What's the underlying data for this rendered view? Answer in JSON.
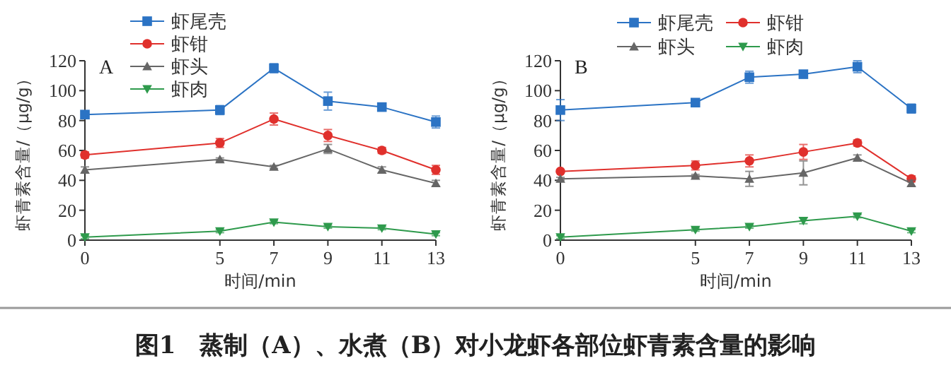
{
  "chart_data": [
    {
      "type": "line",
      "x": [
        0,
        5,
        7,
        9,
        11,
        13
      ],
      "xlim": [
        0,
        13
      ],
      "xticks": [
        0,
        5,
        7,
        9,
        11,
        13
      ],
      "ylim": [
        0,
        120
      ],
      "yticks": [
        0,
        20,
        40,
        60,
        80,
        100,
        120
      ],
      "xlabel": "时间/min",
      "ylabel": "虾青素含量/（μg/g）",
      "legend": "top",
      "grid": false,
      "annotations": [
        "A"
      ],
      "series": [
        {
          "name": "虾尾壳",
          "color": "#2b73c4",
          "marker": "square",
          "values": [
            84,
            87,
            115,
            93,
            89,
            79
          ],
          "errors": [
            2,
            3,
            3,
            6,
            2,
            4
          ]
        },
        {
          "name": "虾钳",
          "color": "#e0302c",
          "marker": "circle",
          "values": [
            57,
            65,
            81,
            70,
            60,
            47
          ],
          "errors": [
            2,
            3,
            4,
            4,
            2,
            3
          ]
        },
        {
          "name": "虾头",
          "color": "#666666",
          "marker": "triangle",
          "values": [
            47,
            54,
            49,
            61,
            47,
            38
          ],
          "errors": [
            2,
            1,
            1,
            3,
            2,
            2
          ]
        },
        {
          "name": "虾肉",
          "color": "#2e9a4c",
          "marker": "triangle-down",
          "values": [
            2,
            6,
            12,
            9,
            8,
            4
          ],
          "errors": [
            1,
            1,
            1,
            1,
            1,
            1
          ]
        }
      ]
    },
    {
      "type": "line",
      "x": [
        0,
        5,
        7,
        9,
        11,
        13
      ],
      "xlim": [
        0,
        13
      ],
      "xticks": [
        0,
        5,
        7,
        9,
        11,
        13
      ],
      "ylim": [
        0,
        120
      ],
      "yticks": [
        0,
        20,
        40,
        60,
        80,
        100,
        120
      ],
      "xlabel": "时间/min",
      "ylabel": "虾青素含量/（μg/g）",
      "legend": "top",
      "grid": false,
      "annotations": [
        "B",
        "图1　蒸制（A）、水煮（B）对小龙虾各部位虾青素含量的影响"
      ],
      "series": [
        {
          "name": "虾尾壳",
          "color": "#2b73c4",
          "marker": "square",
          "values": [
            87,
            92,
            109,
            111,
            116,
            88
          ],
          "errors": [
            7,
            1,
            4,
            1,
            4,
            3
          ]
        },
        {
          "name": "虾钳",
          "color": "#e0302c",
          "marker": "circle",
          "values": [
            46,
            50,
            53,
            59,
            65,
            41
          ],
          "errors": [
            1,
            3,
            4,
            5,
            2,
            2
          ]
        },
        {
          "name": "虾头",
          "color": "#666666",
          "marker": "triangle",
          "values": [
            41,
            43,
            41,
            45,
            55,
            38
          ],
          "errors": [
            1,
            1,
            5,
            8,
            2,
            2
          ]
        },
        {
          "name": "虾肉",
          "color": "#2e9a4c",
          "marker": "triangle-down",
          "values": [
            2,
            7,
            9,
            13,
            16,
            6
          ],
          "errors": [
            1,
            1,
            1,
            2,
            1,
            1
          ]
        }
      ]
    }
  ]
}
